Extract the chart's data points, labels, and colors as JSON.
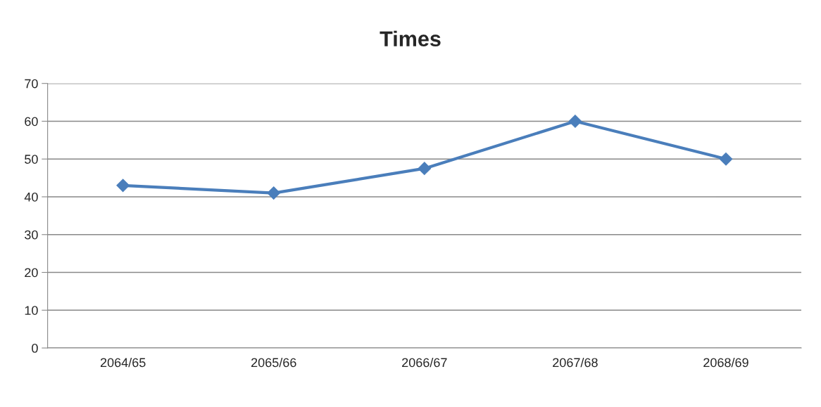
{
  "chart_data": {
    "type": "line",
    "title": "Times",
    "categories": [
      "2064/65",
      "2065/66",
      "2066/67",
      "2067/68",
      "2068/69"
    ],
    "series": [
      {
        "color": "#4a7ebb",
        "values": [
          43,
          41,
          47.5,
          60,
          50
        ]
      }
    ],
    "ylim": [
      0,
      70
    ],
    "yticks": [
      0,
      10,
      20,
      30,
      40,
      50,
      60,
      70
    ],
    "grid": "y",
    "legend": false,
    "marker": "diamond",
    "line_style": "solid"
  }
}
